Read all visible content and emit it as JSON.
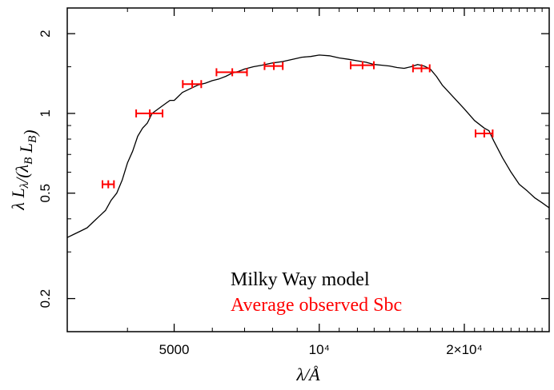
{
  "chart_data": {
    "type": "line",
    "title": "",
    "xlabel": "λ/Å",
    "ylabel": "λ L_λ/(λ_B L_B)",
    "x_scale": "log",
    "y_scale": "log",
    "xlim": [
      3000,
      30000
    ],
    "ylim": [
      0.15,
      2.5
    ],
    "x_ticks": [
      {
        "value": 5000,
        "label": "5000"
      },
      {
        "value": 10000,
        "label": "10⁴"
      },
      {
        "value": 20000,
        "label": "2×10⁴"
      }
    ],
    "y_ticks": [
      {
        "value": 0.2,
        "label": "0.2"
      },
      {
        "value": 0.5,
        "label": "0.5"
      },
      {
        "value": 1,
        "label": "1"
      },
      {
        "value": 2,
        "label": "2"
      }
    ],
    "grid": false,
    "legend_position": "bottom-right",
    "colors": {
      "model": "#000000",
      "observed": "#ff0000"
    },
    "series": [
      {
        "name": "Milky Way model",
        "kind": "line",
        "x": [
          3000,
          3100,
          3200,
          3300,
          3400,
          3500,
          3600,
          3700,
          3800,
          3900,
          4000,
          4100,
          4200,
          4300,
          4400,
          4500,
          4600,
          4700,
          4800,
          4900,
          5000,
          5200,
          5400,
          5600,
          5800,
          6000,
          6200,
          6400,
          6600,
          6800,
          7000,
          7300,
          7600,
          8000,
          8400,
          8800,
          9200,
          9600,
          10000,
          10500,
          11000,
          11500,
          12000,
          12500,
          13000,
          13500,
          14000,
          14500,
          15000,
          15500,
          16000,
          16500,
          17000,
          17500,
          18000,
          19000,
          20000,
          21000,
          22000,
          22500,
          23000,
          24000,
          25000,
          26000,
          27000,
          28000,
          29000,
          30000
        ],
        "y": [
          0.34,
          0.35,
          0.36,
          0.37,
          0.39,
          0.41,
          0.43,
          0.47,
          0.5,
          0.56,
          0.65,
          0.72,
          0.82,
          0.88,
          0.92,
          1.0,
          1.03,
          1.06,
          1.09,
          1.12,
          1.12,
          1.2,
          1.24,
          1.28,
          1.3,
          1.33,
          1.35,
          1.38,
          1.42,
          1.44,
          1.47,
          1.5,
          1.52,
          1.55,
          1.57,
          1.6,
          1.63,
          1.64,
          1.66,
          1.65,
          1.62,
          1.6,
          1.58,
          1.56,
          1.53,
          1.52,
          1.51,
          1.49,
          1.48,
          1.5,
          1.53,
          1.51,
          1.47,
          1.38,
          1.28,
          1.15,
          1.04,
          0.94,
          0.88,
          0.86,
          0.79,
          0.68,
          0.6,
          0.54,
          0.51,
          0.48,
          0.46,
          0.44
        ]
      },
      {
        "name": "Average observed Sbc",
        "kind": "errorbar",
        "points": [
          {
            "x": 3650,
            "y": 0.54,
            "xerr": 100
          },
          {
            "x": 4450,
            "y": 1.0,
            "xerr": 280
          },
          {
            "x": 5450,
            "y": 1.29,
            "xerr": 240
          },
          {
            "x": 6600,
            "y": 1.43,
            "xerr": 480
          },
          {
            "x": 8050,
            "y": 1.51,
            "xerr": 350
          },
          {
            "x": 12300,
            "y": 1.52,
            "xerr": 680
          },
          {
            "x": 16300,
            "y": 1.48,
            "xerr": 650
          },
          {
            "x": 22000,
            "y": 0.84,
            "xerr": 900
          }
        ]
      }
    ],
    "legend": [
      {
        "label": "Milky Way model",
        "color": "#000000"
      },
      {
        "label": "Average observed Sbc",
        "color": "#ff0000"
      }
    ]
  }
}
